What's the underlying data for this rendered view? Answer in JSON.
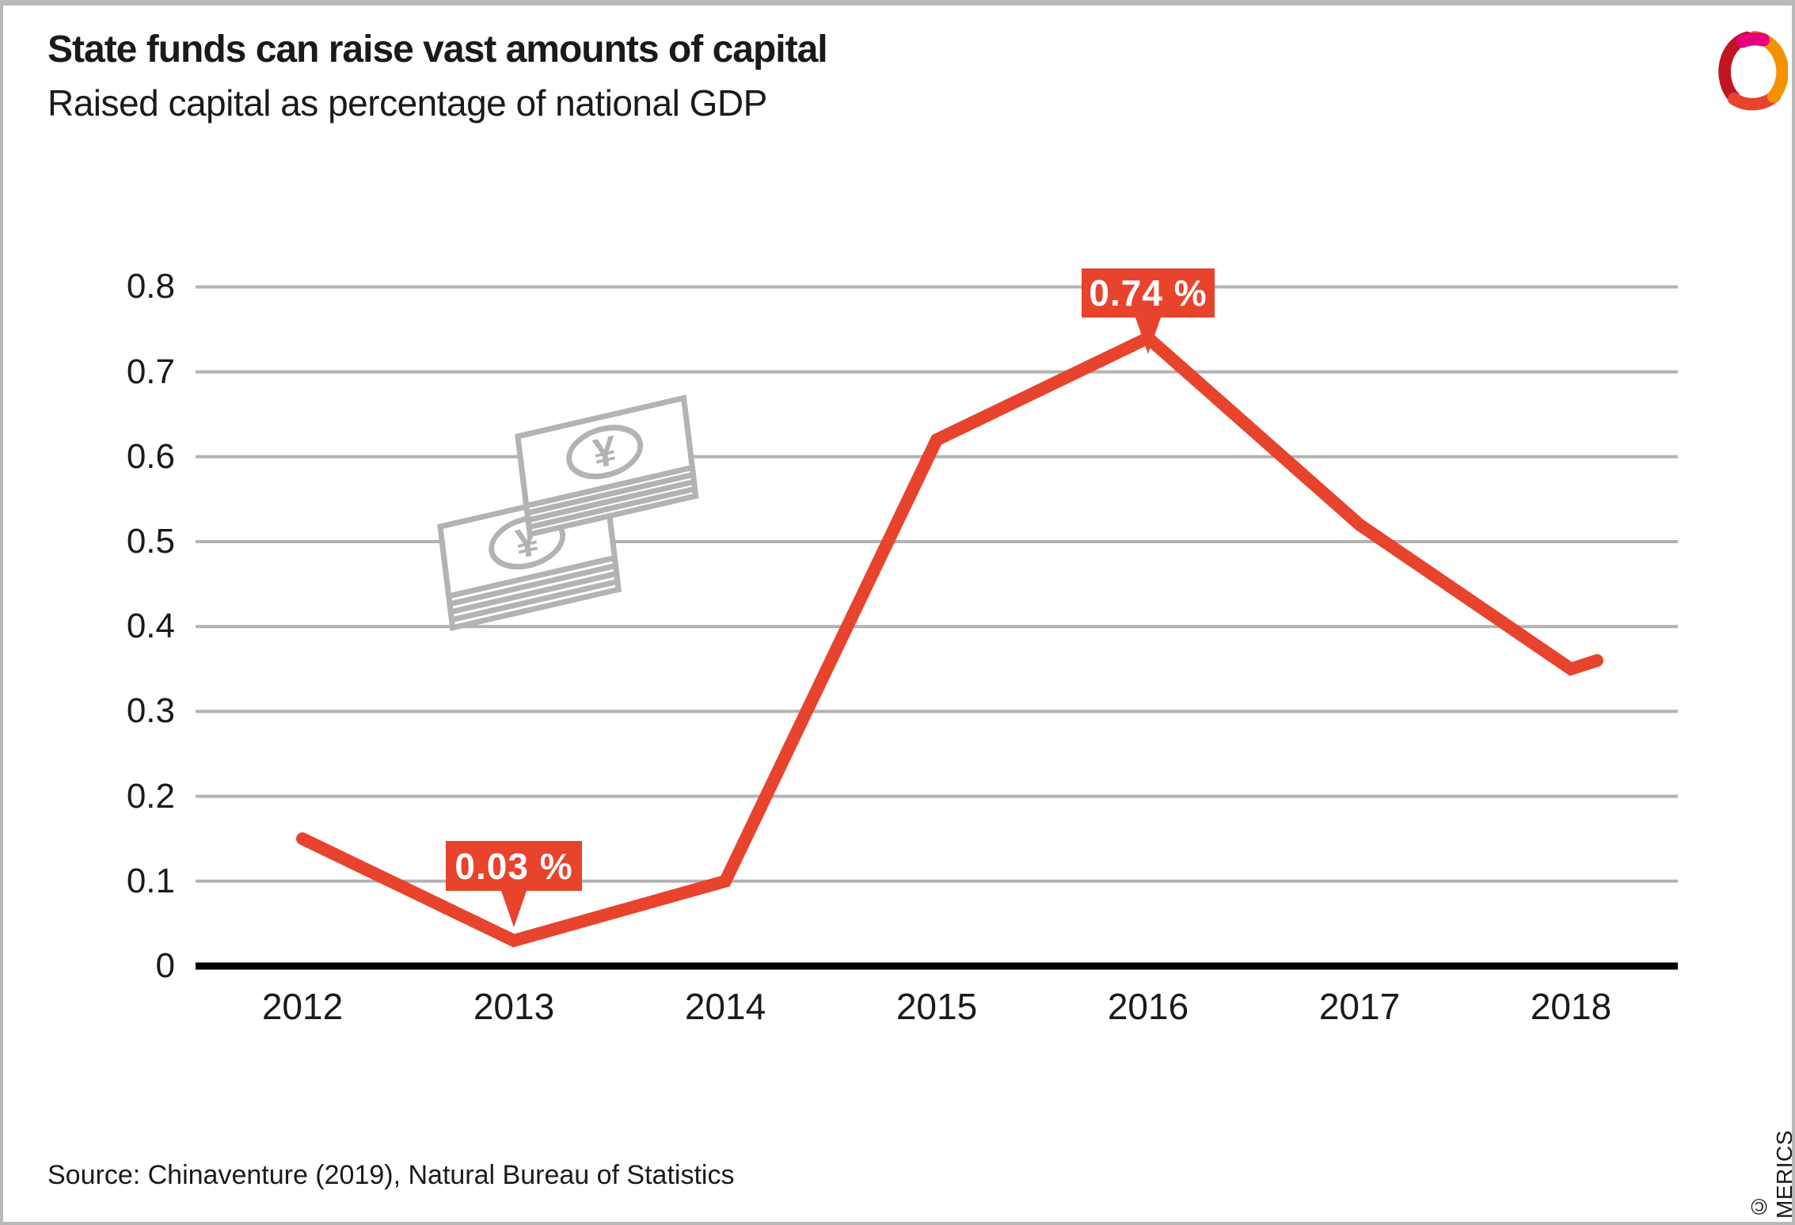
{
  "header": {
    "title": "State funds can raise vast amounts of capital",
    "subtitle": "Raised capital as percentage of national GDP"
  },
  "footer": {
    "source": "Source: Chinaventure (2019), Natural Bureau of Statistics",
    "copyright": "© MERICS"
  },
  "colors": {
    "line_red": "#e8432c",
    "gridline_gray": "#b3b3b3",
    "axis_black": "#000000",
    "text_ink": "#1a1a1a",
    "banknote_gray": "#b3b3b3",
    "logo_crimson": "#c01622",
    "logo_red": "#e8432c",
    "logo_orange": "#f39200",
    "logo_magenta": "#e6007e"
  },
  "chart_data": {
    "type": "line",
    "title": "State funds can raise vast amounts of capital",
    "subtitle": "Raised capital as percentage of national GDP",
    "categories": [
      "2012",
      "2013",
      "2014",
      "2015",
      "2016",
      "2017",
      "2018"
    ],
    "series": [
      {
        "name": "Raised capital as percentage of national GDP",
        "values": [
          0.15,
          0.03,
          0.1,
          0.62,
          0.74,
          0.52,
          0.35
        ]
      }
    ],
    "partial_end_value": 0.36,
    "y_ticks": [
      "0",
      "0.1",
      "0.2",
      "0.3",
      "0.4",
      "0.5",
      "0.6",
      "0.7",
      "0.8"
    ],
    "ylim": [
      0,
      0.8
    ],
    "grid": "horizontal-only",
    "legend": "none",
    "annotations": [
      {
        "category": "2013",
        "value": 0.03,
        "label": "0.03 %"
      },
      {
        "category": "2016",
        "value": 0.74,
        "label": "0.74 %"
      }
    ],
    "icon": "yen-banknotes"
  }
}
